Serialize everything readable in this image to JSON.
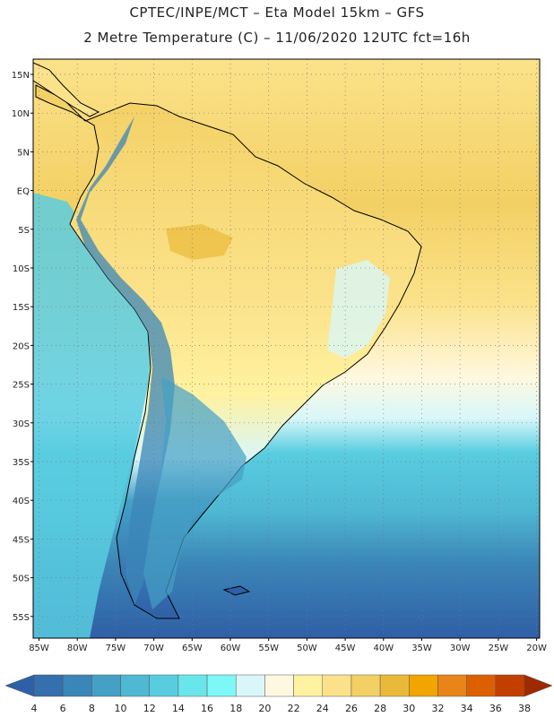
{
  "header": {
    "line1": "CPTEC/INPE/MCT –  Eta Model 15km – GFS",
    "line2": "2 Metre Temperature (C) – 11/06/2020 12UTC fct=16h"
  },
  "lat_labels": [
    "15N",
    "10N",
    "5N",
    "EQ",
    "5S",
    "10S",
    "15S",
    "20S",
    "25S",
    "30S",
    "35S",
    "40S",
    "45S",
    "50S",
    "55S"
  ],
  "lon_labels": [
    "85W",
    "80W",
    "75W",
    "70W",
    "65W",
    "60W",
    "55W",
    "50W",
    "45W",
    "40W",
    "35W",
    "30W",
    "25W",
    "20W"
  ],
  "colorbar": {
    "labels": [
      "4",
      "6",
      "8",
      "10",
      "12",
      "14",
      "16",
      "18",
      "20",
      "22",
      "24",
      "26",
      "28",
      "30",
      "32",
      "34",
      "36",
      "38"
    ],
    "colors": [
      "#2f5fa6",
      "#356fae",
      "#3b86b8",
      "#45a0c6",
      "#4fb8d3",
      "#59cde0",
      "#69e6ec",
      "#7ef7f7",
      "#d9f7f9",
      "#fff8e0",
      "#fff2a0",
      "#fbe28a",
      "#f3d064",
      "#ebb93a",
      "#f2a500",
      "#e88418",
      "#dd6000",
      "#c23f00",
      "#9e2a00"
    ]
  }
}
